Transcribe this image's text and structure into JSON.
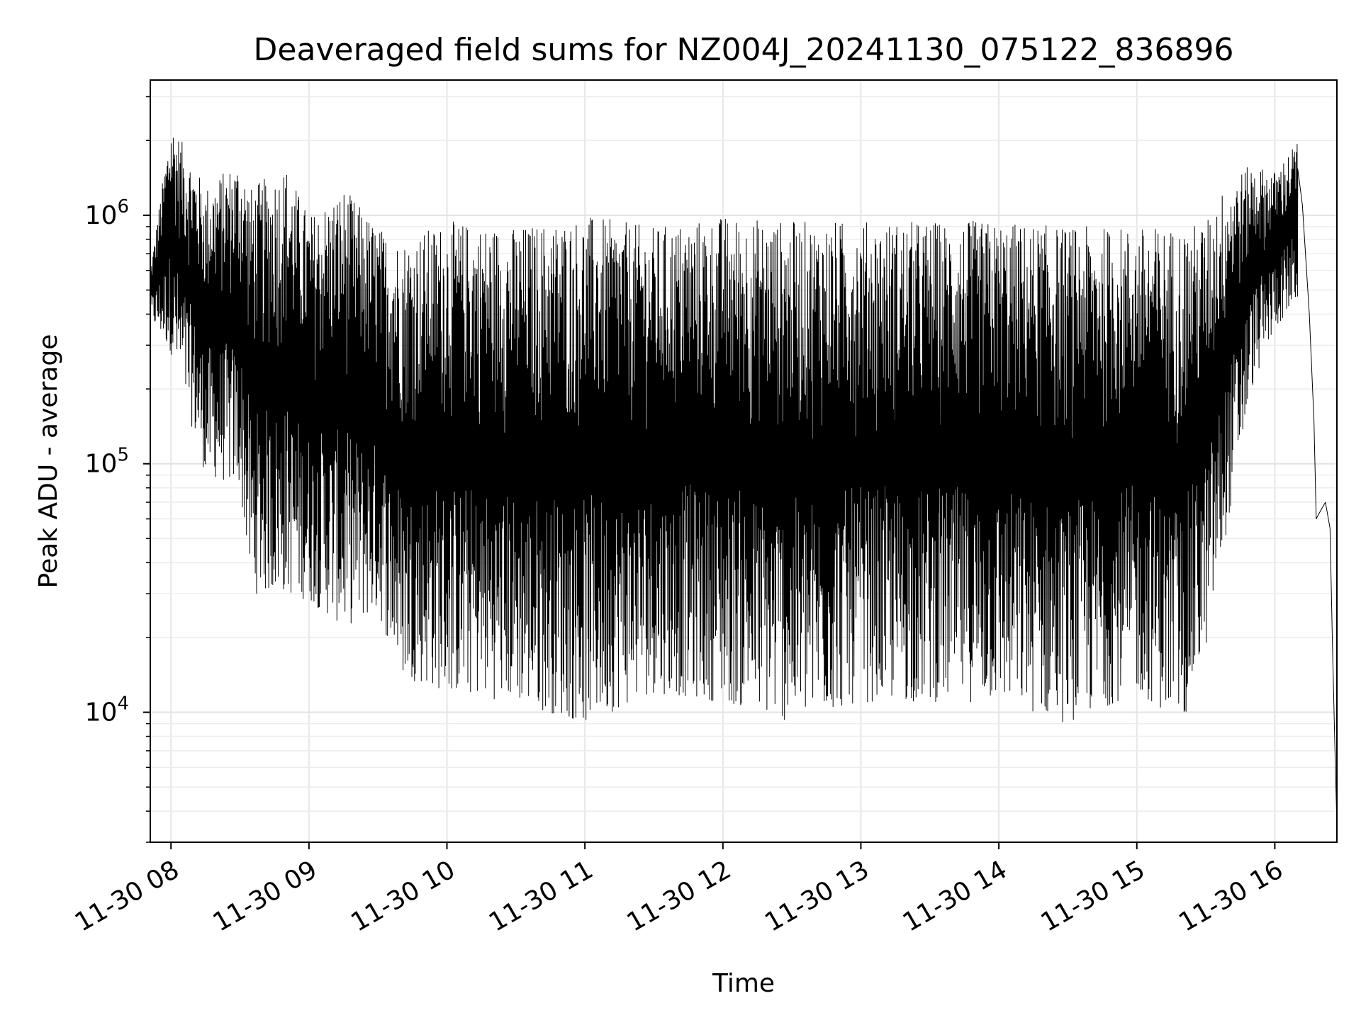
{
  "chart_data": {
    "type": "line",
    "title": "Deaveraged field sums for NZ004J_20241130_075122_836896",
    "xlabel": "Time",
    "ylabel": "Peak ADU - average",
    "yscale": "log",
    "ylim": [
      3000,
      3500000
    ],
    "xlim": [
      "2024-11-30 07:51",
      "2024-11-30 16:27"
    ],
    "grid": true,
    "line_color": "#000000",
    "x_ticks": [
      "11-30 08",
      "11-30 09",
      "11-30 10",
      "11-30 11",
      "11-30 12",
      "11-30 13",
      "11-30 14",
      "11-30 15",
      "11-30 16"
    ],
    "y_ticks": [
      {
        "base": "10",
        "exp": "4",
        "value": 10000
      },
      {
        "base": "10",
        "exp": "5",
        "value": 100000
      },
      {
        "base": "10",
        "exp": "6",
        "value": 1000000
      }
    ],
    "series": [
      {
        "name": "",
        "envelope": [
          {
            "t": "07:51",
            "low": 380000,
            "high": 600000
          },
          {
            "t": "08:00",
            "low": 280000,
            "high": 2400000
          },
          {
            "t": "08:15",
            "low": 90000,
            "high": 1300000
          },
          {
            "t": "08:30",
            "low": 80000,
            "high": 1700000
          },
          {
            "t": "08:35",
            "low": 30000,
            "high": 1300000
          },
          {
            "t": "08:50",
            "low": 30000,
            "high": 1600000
          },
          {
            "t": "09:00",
            "low": 28000,
            "high": 1000000
          },
          {
            "t": "09:15",
            "low": 22000,
            "high": 1300000
          },
          {
            "t": "09:30",
            "low": 25000,
            "high": 900000
          },
          {
            "t": "09:40",
            "low": 14000,
            "high": 800000
          },
          {
            "t": "10:00",
            "low": 12000,
            "high": 950000
          },
          {
            "t": "10:30",
            "low": 11000,
            "high": 900000
          },
          {
            "t": "11:00",
            "low": 9000,
            "high": 1000000
          },
          {
            "t": "11:30",
            "low": 12000,
            "high": 900000
          },
          {
            "t": "12:00",
            "low": 11000,
            "high": 1000000
          },
          {
            "t": "12:30",
            "low": 9000,
            "high": 950000
          },
          {
            "t": "13:00",
            "low": 11000,
            "high": 950000
          },
          {
            "t": "13:30",
            "low": 11000,
            "high": 950000
          },
          {
            "t": "14:00",
            "low": 11000,
            "high": 950000
          },
          {
            "t": "14:30",
            "low": 9000,
            "high": 900000
          },
          {
            "t": "15:00",
            "low": 12000,
            "high": 900000
          },
          {
            "t": "15:20",
            "low": 9000,
            "high": 900000
          },
          {
            "t": "15:30",
            "low": 18000,
            "high": 950000
          },
          {
            "t": "15:40",
            "low": 60000,
            "high": 1400000
          },
          {
            "t": "15:50",
            "low": 200000,
            "high": 1600000
          },
          {
            "t": "16:00",
            "low": 350000,
            "high": 1500000
          },
          {
            "t": "16:10",
            "low": 450000,
            "high": 2000000
          }
        ],
        "tail": [
          {
            "t": "16:12",
            "y": 1100000
          },
          {
            "t": "16:15",
            "y": 400000
          },
          {
            "t": "16:17",
            "y": 150000
          },
          {
            "t": "16:18",
            "y": 60000
          },
          {
            "t": "16:20",
            "y": 65000
          },
          {
            "t": "16:22",
            "y": 70000
          },
          {
            "t": "16:24",
            "y": 55000
          },
          {
            "t": "16:25",
            "y": 20000
          },
          {
            "t": "16:26",
            "y": 8000
          },
          {
            "t": "16:27",
            "y": 3500
          }
        ]
      }
    ]
  }
}
